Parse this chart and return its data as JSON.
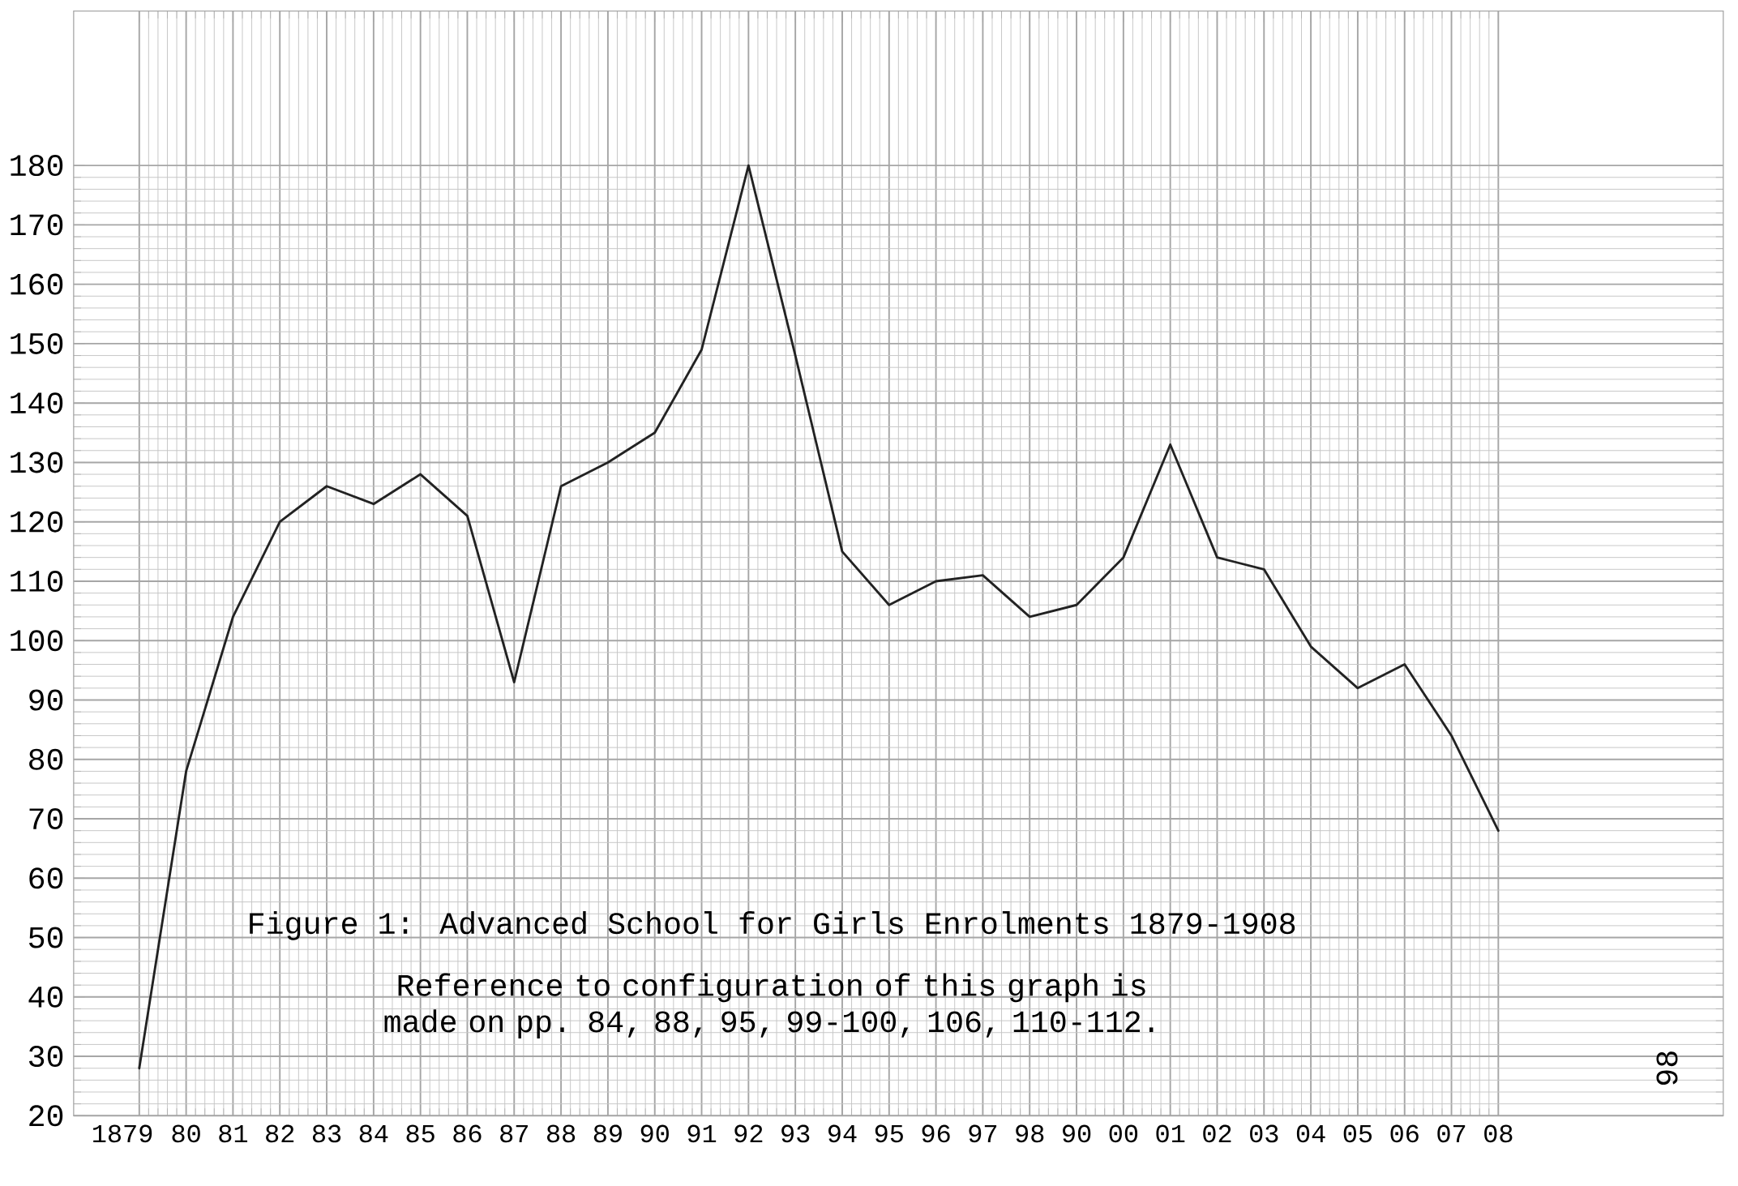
{
  "chart_data": {
    "type": "line",
    "title": "Figure 1:  Advanced School for Girls Enrolments 1879-1908",
    "annotations": [
      "Reference to configuration of this graph is made on pp. 84, 88, 95, 99-100, 106, 110-112.",
      "98"
    ],
    "categories": [
      "1879",
      "80",
      "81",
      "82",
      "83",
      "84",
      "85",
      "86",
      "87",
      "88",
      "89",
      "90",
      "91",
      "92",
      "93",
      "94",
      "95",
      "96",
      "97",
      "98",
      "90",
      "00",
      "01",
      "02",
      "03",
      "04",
      "05",
      "06",
      "07",
      "08"
    ],
    "series": [
      {
        "color": "#222222",
        "values": [
          28,
          78,
          104,
          120,
          126,
          123,
          128,
          121,
          93,
          126,
          130,
          135,
          149,
          180,
          148,
          115,
          106,
          110,
          111,
          104,
          106,
          114,
          133,
          114,
          112,
          99,
          92,
          96,
          84,
          68
        ]
      }
    ],
    "ylim": [
      20,
      206
    ],
    "yticks": [
      20,
      30,
      40,
      50,
      60,
      70,
      80,
      90,
      100,
      110,
      120,
      130,
      140,
      150,
      160,
      170,
      180
    ],
    "grid": true,
    "marker": "none",
    "line_style": "solid"
  }
}
